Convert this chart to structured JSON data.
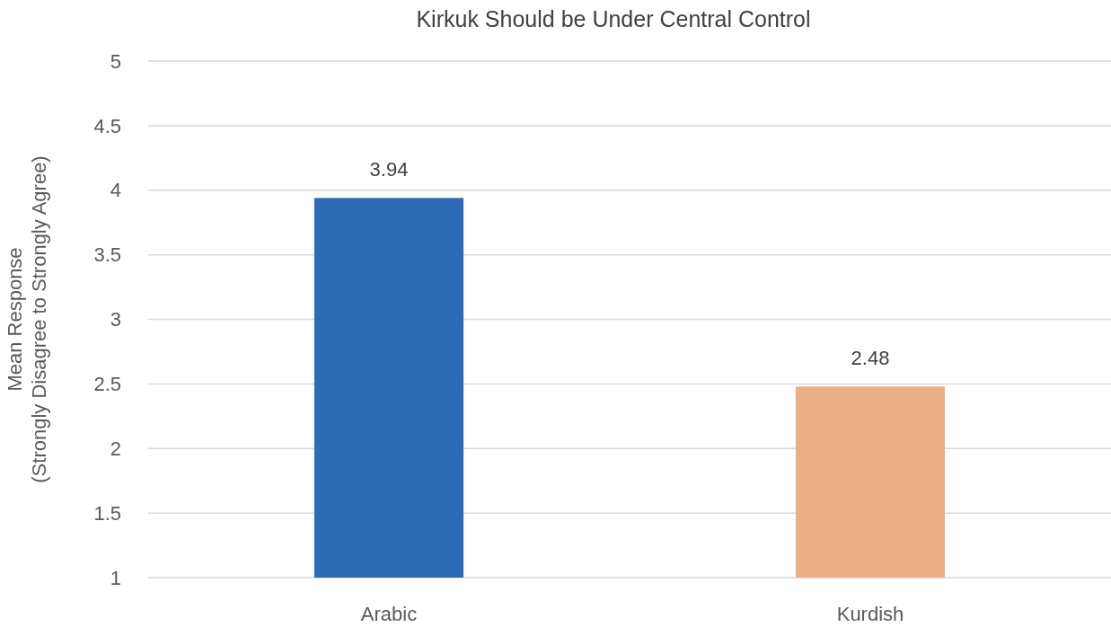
{
  "chart_data": {
    "type": "bar",
    "title": "Kirkuk Should be Under Central Control",
    "ylabel": "Mean Response\n(Strongly Disagree to Strongly Agree)",
    "categories": [
      "Arabic",
      "Kurdish"
    ],
    "values": [
      3.94,
      2.48
    ],
    "colors": [
      "#2e6bb7",
      "#ebaf86"
    ],
    "ylim": [
      1,
      5
    ],
    "yticks": [
      1,
      1.5,
      2,
      2.5,
      3,
      3.5,
      4,
      4.5,
      5
    ],
    "grid": "y",
    "data_labels": true
  }
}
